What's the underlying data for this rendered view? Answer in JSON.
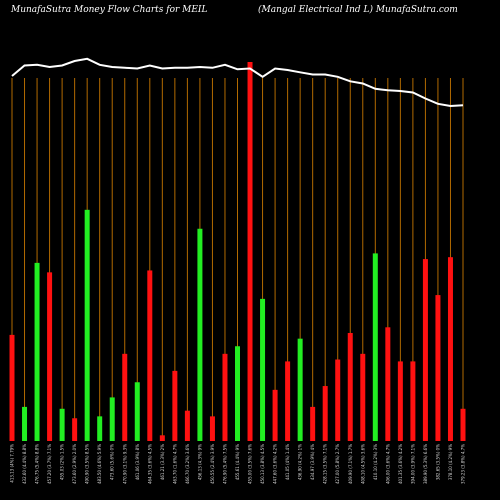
{
  "header": {
    "left": "MunafaSutra  Money Flow  Charts for MEIL",
    "right": "(Mangal Electrical Ind L) MunafaSutra.com"
  },
  "colors": {
    "background": "#000000",
    "buy": "#22ee22",
    "sell": "#ff1111",
    "grid": "#b26a00",
    "price_line": "#ffffff"
  },
  "chart_data": {
    "type": "bar",
    "overlay": "line",
    "grid": "vertical",
    "bar_ylim": [
      0,
      100
    ],
    "line_ylim": [
      0,
      100
    ],
    "categories": [
      "413.13 (4%) 7.79%",
      "432.60 (4.4%) 8.8%",
      "476.75 (5.4%) 8.8%",
      "457.20 (3.7%) 7.1%",
      "455.03 (2%) 1.5%",
      "473.60 (2.9%) 2.0%",
      "490.90 (3.5%) 8.5%",
      "483.50 (4.6%) 5.9%",
      "473.60 (5.6%) 0%",
      "470.90 (3.1%) 9.3%",
      "461.06 (3.9%) 8%",
      "464.35 (3.6%) 4.5%",
      "461.21 (3.3%) 2%",
      "463.70 (1.6%) 4.7%",
      "466.70 (3.2%) 3.6%",
      "456.13 (4.3%) 9%",
      "450.55 (2.4%) 3.9%",
      "476.90 (5.4%) 7.5%",
      "455.61 (4.4%) 9%",
      "455.00 (3.5%) 7.6%",
      "450.13 (3.8%) 4.5%",
      "447.60 (3.6%) 4.2%",
      "441.05 (4%) 1.4%",
      "436.90 (4.2%) 1%",
      "434.97 (3.9%) 4%",
      "428.15 (3.5%) 7.1%",
      "427.00 (5.8%) 2.7%",
      "409.90 (7.1%) 1.7%",
      "408.10 (4.5%) 3.6%",
      "410.10 (4.2%) 3%",
      "406.00 (3.6%) 4.7%",
      "401.35 (3.6%) 4.2%",
      "394.00 (3.9%) 7.1%",
      "389.90 (5.3%) 6.6%",
      "382.65 (3.5%) 0%",
      "378.10 (4.2%) 9%",
      "379.23 (3.8%) 4.7%"
    ],
    "series": [
      {
        "kind": "bar",
        "colors": [
          "red",
          "green",
          "green",
          "red",
          "green",
          "red",
          "green",
          "green",
          "green",
          "red",
          "green",
          "red",
          "red",
          "red",
          "red",
          "green",
          "red",
          "red",
          "green",
          "red",
          "green",
          "red",
          "red",
          "green",
          "red",
          "red",
          "red",
          "red",
          "red",
          "green",
          "red",
          "red",
          "red",
          "red",
          "red",
          "red",
          "red"
        ],
        "values": [
          28,
          9,
          47,
          44.5,
          8.5,
          6,
          61,
          6.5,
          11.5,
          23,
          15.5,
          45,
          1.5,
          18.5,
          8,
          56,
          6.5,
          23,
          25,
          100,
          37.5,
          13.5,
          21,
          27,
          9,
          14.5,
          21.5,
          28.5,
          23,
          49.5,
          30,
          21,
          21,
          48,
          38.5,
          48.5,
          8.5
        ]
      },
      {
        "kind": "line",
        "values": [
          86,
          93,
          93.5,
          92,
          93,
          96,
          97.5,
          93.5,
          92,
          91.5,
          91,
          93,
          91,
          91.5,
          91.5,
          92,
          91.5,
          93.5,
          90.5,
          91,
          85.5,
          91,
          90,
          88.5,
          87,
          87,
          85.5,
          82.5,
          81,
          77.5,
          76.5,
          76,
          75,
          71,
          67.5,
          66,
          66.5
        ]
      }
    ]
  }
}
